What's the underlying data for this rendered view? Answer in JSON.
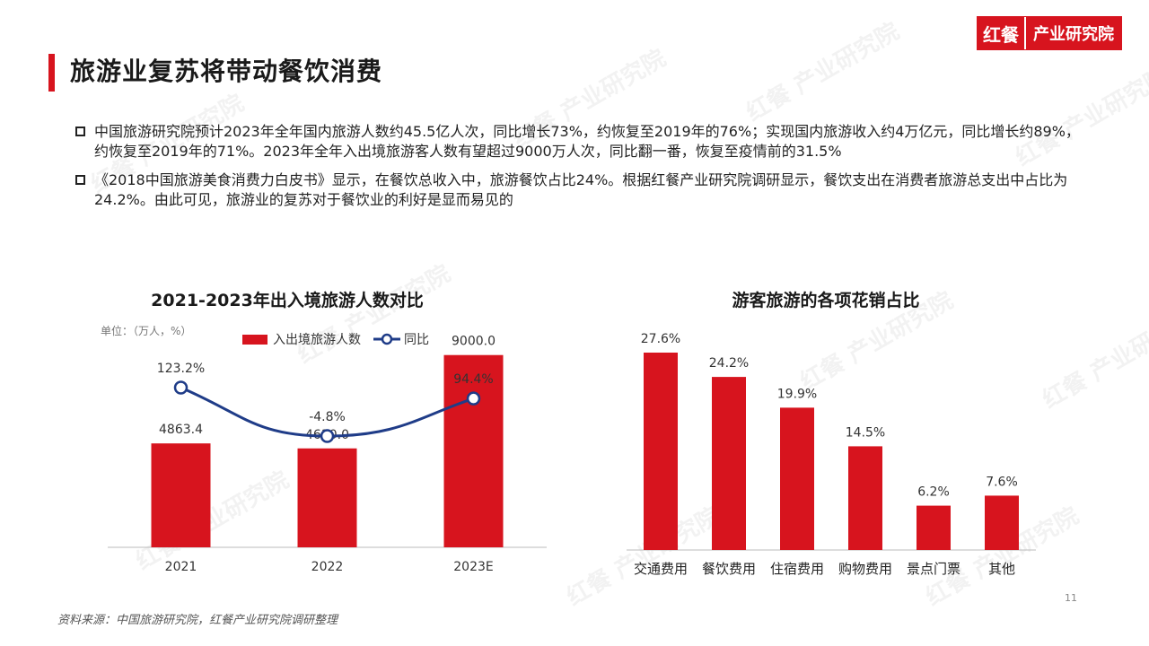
{
  "header": {
    "title": "旅游业复苏将带动餐饮消费",
    "logo_mark": "红餐",
    "logo_text": "产业研究院"
  },
  "bullets": [
    "中国旅游研究院预计2023年全年国内旅游人数约45.5亿人次，同比增长73%，约恢复至2019年的76%；实现国内旅游收入约4万亿元，同比增长约89%，约恢复至2019年的71%。2023年全年入出境旅游客人数有望超过9000万人次，同比翻一番，恢复至疫情前的31.5%",
    "《2018中国旅游美食消费力白皮书》显示，在餐饮总收入中，旅游餐饮占比24%。根据红餐产业研究院调研显示，餐饮支出在消费者旅游总支出中占比为24.2%。由此可见，旅游业的复苏对于餐饮业的利好是显而易见的"
  ],
  "chart_data": [
    {
      "type": "bar+line",
      "title": "2021-2023年出入境旅游人数对比",
      "unit_label": "单位：（万人，%）",
      "categories": [
        "2021",
        "2022",
        "2023E"
      ],
      "series": [
        {
          "name": "入出境旅游人数",
          "type": "bar",
          "values": [
            4863.4,
            4630.0,
            9000.0
          ],
          "labels": [
            "4863.4",
            "4630.0",
            "9000.0"
          ],
          "color": "#d7141e"
        },
        {
          "name": "同比",
          "type": "line",
          "values": [
            123.2,
            -4.8,
            94.4
          ],
          "labels": [
            "123.2%",
            "-4.8%",
            "94.4%"
          ],
          "color": "#1f3c88"
        }
      ],
      "legend_position": "top",
      "grid": false
    },
    {
      "type": "bar",
      "title": "游客旅游的各项花销占比",
      "categories": [
        "交通费用",
        "餐饮费用",
        "住宿费用",
        "购物费用",
        "景点门票",
        "其他"
      ],
      "values": [
        27.6,
        24.2,
        19.9,
        14.5,
        6.2,
        7.6
      ],
      "labels": [
        "27.6%",
        "24.2%",
        "19.9%",
        "14.5%",
        "6.2%",
        "7.6%"
      ],
      "color": "#d7141e",
      "grid": false
    }
  ],
  "footer": {
    "source": "资料来源：中国旅游研究院，红餐产业研究院调研整理",
    "page_number": "11"
  },
  "watermark": "红餐 产业研究院"
}
